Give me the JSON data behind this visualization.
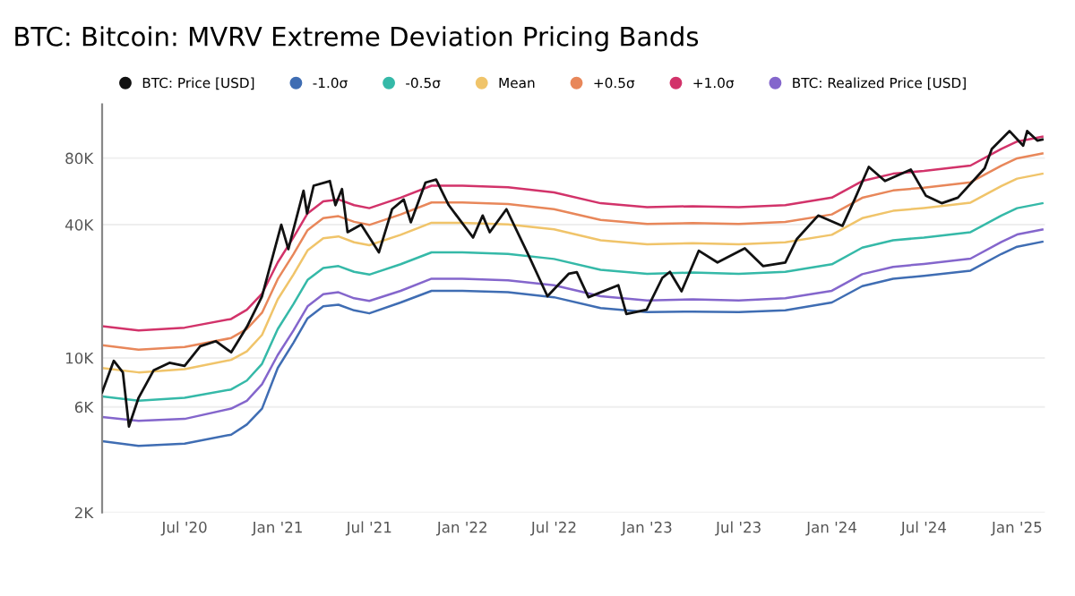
{
  "chart_data": {
    "type": "line",
    "title": "BTC: Bitcoin: MVRV Extreme Deviation Pricing Bands",
    "x": [
      "2020-01-20",
      "2020-04-01",
      "2020-07-01",
      "2020-10-01",
      "2020-11-01",
      "2020-12-01",
      "2021-01-01",
      "2021-02-01",
      "2021-03-01",
      "2021-04-01",
      "2021-05-01",
      "2021-06-01",
      "2021-07-01",
      "2021-09-01",
      "2021-11-01",
      "2022-01-01",
      "2022-04-01",
      "2022-07-01",
      "2022-10-01",
      "2023-01-01",
      "2023-04-01",
      "2023-07-01",
      "2023-10-01",
      "2024-01-01",
      "2024-03-01",
      "2024-05-01",
      "2024-07-01",
      "2024-10-01",
      "2024-12-01",
      "2025-01-01",
      "2025-02-20"
    ],
    "series": [
      {
        "name": "BTC: Price [USD]",
        "color": "#111111",
        "x": [
          "2020-01-20",
          "2020-02-12",
          "2020-03-01",
          "2020-03-13",
          "2020-04-01",
          "2020-05-01",
          "2020-06-01",
          "2020-07-01",
          "2020-08-01",
          "2020-09-01",
          "2020-10-01",
          "2020-11-01",
          "2020-12-01",
          "2021-01-08",
          "2021-01-22",
          "2021-02-21",
          "2021-02-28",
          "2021-03-13",
          "2021-04-14",
          "2021-04-25",
          "2021-05-08",
          "2021-05-19",
          "2021-06-15",
          "2021-07-20",
          "2021-08-15",
          "2021-09-07",
          "2021-09-21",
          "2021-10-20",
          "2021-11-10",
          "2021-12-05",
          "2022-01-22",
          "2022-02-10",
          "2022-02-24",
          "2022-03-29",
          "2022-05-12",
          "2022-06-18",
          "2022-07-30",
          "2022-08-15",
          "2022-09-07",
          "2022-11-05",
          "2022-11-21",
          "2022-12-31",
          "2023-01-31",
          "2023-02-15",
          "2023-03-10",
          "2023-04-13",
          "2023-05-20",
          "2023-07-13",
          "2023-08-18",
          "2023-10-01",
          "2023-10-24",
          "2023-12-05",
          "2024-01-22",
          "2024-02-15",
          "2024-03-14",
          "2024-04-15",
          "2024-06-05",
          "2024-07-05",
          "2024-08-05",
          "2024-09-06",
          "2024-10-29",
          "2024-11-12",
          "2024-12-17",
          "2025-01-13",
          "2025-01-21",
          "2025-02-10",
          "2025-02-20"
        ],
        "values": [
          7000,
          9700,
          8600,
          4900,
          6600,
          8800,
          9500,
          9200,
          11300,
          11900,
          10600,
          13800,
          19000,
          40000,
          31000,
          57000,
          45000,
          60000,
          63000,
          49000,
          58000,
          37000,
          40000,
          30000,
          47000,
          52000,
          41000,
          62000,
          64000,
          49000,
          35000,
          44000,
          37000,
          47000,
          29000,
          19000,
          24000,
          24400,
          18800,
          21300,
          15800,
          16500,
          23000,
          24500,
          20000,
          30500,
          27000,
          31300,
          26000,
          27000,
          34500,
          44000,
          39500,
          52000,
          73000,
          63000,
          71000,
          54000,
          50000,
          53000,
          72000,
          88000,
          106000,
          91000,
          106000,
          96000,
          97000
        ]
      },
      {
        "name": "-1.0σ",
        "color": "#3f6db3",
        "values": [
          4200,
          4000,
          4100,
          4500,
          5000,
          5900,
          9000,
          11700,
          15100,
          17100,
          17400,
          16400,
          15900,
          17800,
          20100,
          20100,
          19800,
          18800,
          16800,
          16100,
          16200,
          16100,
          16400,
          17800,
          21100,
          22800,
          23500,
          24800,
          29500,
          31800,
          33500
        ]
      },
      {
        "name": "-0.5σ",
        "color": "#35b9a8",
        "values": [
          6700,
          6400,
          6600,
          7200,
          7900,
          9400,
          13500,
          17500,
          22500,
          25500,
          26000,
          24500,
          23800,
          26500,
          30000,
          30000,
          29500,
          28000,
          25000,
          24000,
          24300,
          24000,
          24500,
          26500,
          31500,
          34000,
          35000,
          37000,
          44000,
          47500,
          50000
        ]
      },
      {
        "name": "Mean",
        "color": "#f0c46a",
        "values": [
          9000,
          8600,
          8900,
          9800,
          10700,
          12700,
          18400,
          23800,
          30600,
          34700,
          35400,
          33300,
          32300,
          36000,
          40800,
          40800,
          40100,
          38100,
          34000,
          32600,
          33000,
          32600,
          33300,
          36000,
          42800,
          46200,
          47600,
          50300,
          59800,
          64600,
          68000
        ]
      },
      {
        "name": "+0.5σ",
        "color": "#e8875a",
        "values": [
          11400,
          10900,
          11200,
          12300,
          13500,
          16000,
          22700,
          29400,
          37800,
          42800,
          43700,
          41200,
          39900,
          44500,
          50400,
          50400,
          49600,
          47000,
          42000,
          40300,
          40700,
          40300,
          41200,
          44500,
          52900,
          57100,
          58800,
          62200,
          73900,
          79800,
          84000
        ]
      },
      {
        "name": "+1.0σ",
        "color": "#d2336a",
        "values": [
          13900,
          13300,
          13700,
          15000,
          16500,
          19500,
          27000,
          35000,
          45000,
          51000,
          52000,
          49000,
          47500,
          53000,
          60000,
          60000,
          59000,
          56000,
          50000,
          48000,
          48500,
          48000,
          49000,
          53000,
          63000,
          68000,
          70000,
          74000,
          88000,
          95000,
          100000
        ]
      },
      {
        "name": "BTC: Realized Price [USD]",
        "color": "#8466cc",
        "values": [
          5400,
          5200,
          5300,
          5900,
          6400,
          7600,
          10300,
          13300,
          17100,
          19400,
          19800,
          18600,
          18100,
          20100,
          22800,
          22800,
          22400,
          21300,
          19000,
          18200,
          18400,
          18200,
          18600,
          20100,
          23900,
          25800,
          26600,
          28100,
          33400,
          36100,
          38000
        ]
      }
    ],
    "log": "y",
    "ylim": [
      2000,
      140000
    ],
    "yticks": [
      {
        "value": 2000,
        "label": "2K"
      },
      {
        "value": 6000,
        "label": "6K"
      },
      {
        "value": 10000,
        "label": "10K"
      },
      {
        "value": 40000,
        "label": "40K"
      },
      {
        "value": 80000,
        "label": "80K"
      }
    ],
    "xlim": [
      "2020-01-20",
      "2025-02-25"
    ],
    "xticks": [
      {
        "value": "2020-07-01",
        "label": "Jul '20"
      },
      {
        "value": "2021-01-01",
        "label": "Jan '21"
      },
      {
        "value": "2021-07-01",
        "label": "Jul '21"
      },
      {
        "value": "2022-01-01",
        "label": "Jan '22"
      },
      {
        "value": "2022-07-01",
        "label": "Jul '22"
      },
      {
        "value": "2023-01-01",
        "label": "Jan '23"
      },
      {
        "value": "2023-07-01",
        "label": "Jul '23"
      },
      {
        "value": "2024-01-01",
        "label": "Jan '24"
      },
      {
        "value": "2024-07-01",
        "label": "Jul '24"
      },
      {
        "value": "2025-01-01",
        "label": "Jan '25"
      }
    ],
    "grid": "y",
    "legend": "top left",
    "marker": "none",
    "line_style": "solid"
  }
}
